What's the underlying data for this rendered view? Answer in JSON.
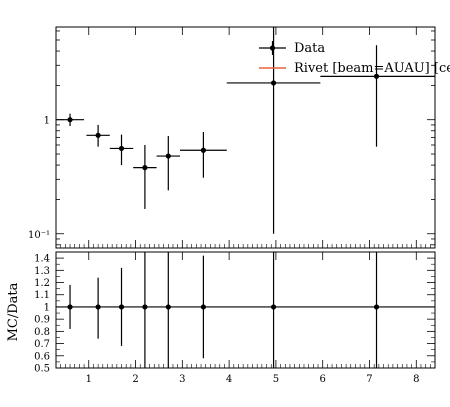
{
  "chart_data": {
    "type": "scatter",
    "legend": {
      "placement": "top-right",
      "entries": [
        {
          "label": "Data",
          "color": "#000000",
          "style": "errorbar-point"
        },
        {
          "label": "Rivet [beam=AUAU] [cen",
          "color": "#e8603c",
          "style": "line"
        }
      ]
    },
    "main_panel": {
      "y_scale": "log",
      "ylim": [
        0.075,
        6.5
      ],
      "xlim": [
        0.3,
        8.4
      ],
      "y_tick_labels": [
        {
          "value": 1,
          "label": "1"
        },
        {
          "value": 0.1,
          "label": "10⁻¹"
        }
      ],
      "series": [
        {
          "name": "Data",
          "color": "#000000",
          "points": [
            {
              "x": 0.6,
              "xlo": 0.3,
              "xhi": 0.9,
              "y": 1.0,
              "ylo": 0.88,
              "yhi": 1.13
            },
            {
              "x": 1.2,
              "xlo": 0.95,
              "xhi": 1.45,
              "y": 0.73,
              "ylo": 0.58,
              "yhi": 0.9
            },
            {
              "x": 1.7,
              "xlo": 1.45,
              "xhi": 1.95,
              "y": 0.56,
              "ylo": 0.4,
              "yhi": 0.74
            },
            {
              "x": 2.2,
              "xlo": 1.95,
              "xhi": 2.45,
              "y": 0.38,
              "ylo": 0.165,
              "yhi": 0.6
            },
            {
              "x": 2.7,
              "xlo": 2.45,
              "xhi": 2.95,
              "y": 0.48,
              "ylo": 0.24,
              "yhi": 0.72
            },
            {
              "x": 3.45,
              "xlo": 2.95,
              "xhi": 3.95,
              "y": 0.54,
              "ylo": 0.31,
              "yhi": 0.78
            },
            {
              "x": 4.95,
              "xlo": 3.95,
              "xhi": 5.95,
              "y": 2.1,
              "ylo": 0.1,
              "yhi": 6.5
            },
            {
              "x": 7.15,
              "xlo": 5.95,
              "xhi": 8.4,
              "y": 2.4,
              "ylo": 0.58,
              "yhi": 4.5
            }
          ]
        }
      ]
    },
    "ratio_panel": {
      "ylabel": "MC/Data",
      "ylim": [
        0.5,
        1.45
      ],
      "y_ticks": [
        0.5,
        0.6,
        0.7,
        0.8,
        0.9,
        1,
        1.1,
        1.2,
        1.3,
        1.4
      ],
      "y_tick_labels": [
        "0.5",
        "0.6",
        "0.7",
        "0.8",
        "0.9",
        "1",
        "1.1",
        "1.2",
        "1.3",
        "1.4"
      ],
      "reference_line": 1,
      "series": [
        {
          "name": "Data",
          "color": "#000000",
          "points": [
            {
              "x": 0.6,
              "y": 1,
              "ylo": 0.82,
              "yhi": 1.18
            },
            {
              "x": 1.2,
              "y": 1,
              "ylo": 0.74,
              "yhi": 1.24
            },
            {
              "x": 1.7,
              "y": 1,
              "ylo": 0.68,
              "yhi": 1.32
            },
            {
              "x": 2.2,
              "y": 1,
              "ylo": 0.5,
              "yhi": 1.45
            },
            {
              "x": 2.7,
              "y": 1,
              "ylo": 0.5,
              "yhi": 1.45
            },
            {
              "x": 3.45,
              "y": 1,
              "ylo": 0.58,
              "yhi": 1.42
            },
            {
              "x": 4.95,
              "y": 1,
              "ylo": 0.5,
              "yhi": 1.45
            },
            {
              "x": 7.15,
              "y": 1,
              "ylo": 0.5,
              "yhi": 1.45
            }
          ]
        }
      ]
    },
    "x_axis": {
      "xlim": [
        0.3,
        8.4
      ],
      "ticks": [
        1,
        2,
        3,
        4,
        5,
        6,
        7,
        8
      ],
      "tick_labels": [
        "1",
        "2",
        "3",
        "4",
        "5",
        "6",
        "7",
        "8"
      ]
    }
  }
}
